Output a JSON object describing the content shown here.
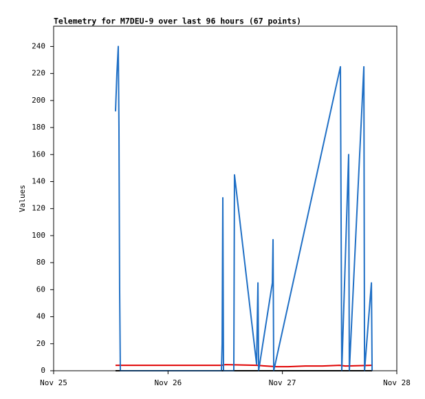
{
  "chart_data": {
    "type": "line",
    "title": "Telemetry for M7DEU-9 over last 96 hours (67 points)",
    "y_label": "Values",
    "xlim": [
      0,
      3
    ],
    "xticks": [
      {
        "value": 0,
        "label": "Nov 25"
      },
      {
        "value": 1,
        "label": "Nov 26"
      },
      {
        "value": 2,
        "label": "Nov 27"
      },
      {
        "value": 3,
        "label": "Nov 28"
      }
    ],
    "ylim": [
      0,
      255
    ],
    "yticks": [
      0,
      20,
      40,
      60,
      80,
      100,
      120,
      140,
      160,
      180,
      200,
      220,
      240
    ],
    "grid": false,
    "series": [
      {
        "color": "#000000",
        "x": [
          0.541,
          2.784
        ],
        "values": [
          0,
          0
        ]
      },
      {
        "color": "#e00000",
        "x": [
          0.541,
          1.467,
          1.5,
          1.774,
          1.95,
          2.05,
          2.2,
          2.35,
          2.5,
          2.55,
          2.784
        ],
        "values": [
          4,
          4,
          4.5,
          4,
          3,
          3,
          3.5,
          3.5,
          4,
          3.5,
          4
        ]
      },
      {
        "color": "#1f6fc5",
        "x": [
          0.541,
          0.553,
          0.565,
          0.571,
          0.577,
          0.583,
          1.467,
          1.473,
          1.479,
          1.485,
          1.575,
          1.581,
          1.774,
          1.786,
          1.792,
          1.912,
          1.918,
          1.924,
          2.507,
          2.519,
          2.579,
          2.585,
          2.712,
          2.718,
          2.778,
          2.784
        ],
        "values": [
          192,
          220,
          240,
          180,
          60,
          0,
          0,
          20,
          128,
          0,
          0,
          145,
          5,
          65,
          0,
          65,
          97,
          0,
          225,
          0,
          160,
          0,
          225,
          0,
          65,
          0
        ]
      }
    ]
  }
}
